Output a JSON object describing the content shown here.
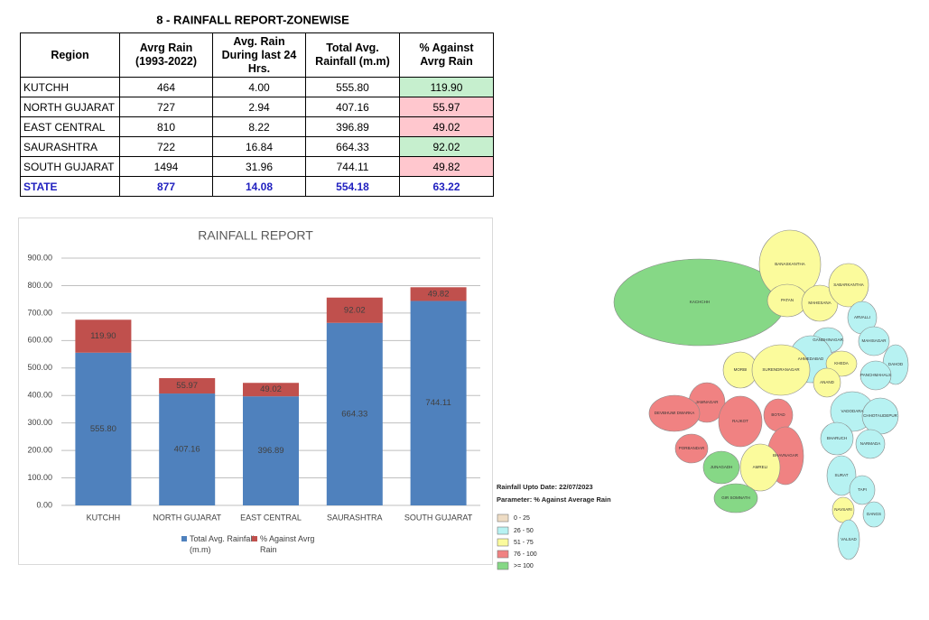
{
  "table": {
    "title": "8 - RAINFALL REPORT-ZONEWISE",
    "header": [
      "Region",
      "Avrg Rain\n(1993-2022)",
      "Avg. Rain\nDuring last 24\nHrs.",
      "Total Avg.\nRainfall (m.m)",
      "% Against\nAvrg Rain"
    ],
    "rows": [
      [
        "KUTCHH",
        "464",
        "4.00",
        "555.80",
        "119.90"
      ],
      [
        "NORTH GUJARAT",
        "727",
        "2.94",
        "407.16",
        "55.97"
      ],
      [
        "EAST CENTRAL",
        "810",
        "8.22",
        "396.89",
        "49.02"
      ],
      [
        "SAURASHTRA",
        "722",
        "16.84",
        "664.33",
        "92.02"
      ],
      [
        "SOUTH GUJARAT",
        "1494",
        "31.96",
        "744.11",
        "49.82"
      ],
      [
        "STATE",
        "877",
        "14.08",
        "554.18",
        "63.22"
      ]
    ],
    "pct_colors": [
      "#c6efce",
      "#ffc7ce",
      "#ffc7ce",
      "#c6efce",
      "#ffc7ce",
      "#ffffff"
    ]
  },
  "chart_data": {
    "type": "stacked-bar",
    "title": "RAINFALL REPORT",
    "categories": [
      "KUTCHH",
      "NORTH GUJARAT",
      "EAST CENTRAL",
      "SAURASHTRA",
      "SOUTH GUJARAT"
    ],
    "series": [
      {
        "name": "Total Avg. Rainfall (m.m)",
        "color": "#4f81bd",
        "values": [
          555.8,
          407.16,
          396.89,
          664.33,
          744.11
        ],
        "value_labels": [
          "555.80",
          "407.16",
          "396.89",
          "664.33",
          "744.11"
        ]
      },
      {
        "name": "% Against Avrg Rain",
        "color": "#c0504d",
        "values": [
          119.9,
          55.97,
          49.02,
          92.02,
          49.82
        ],
        "value_labels": [
          "119.90",
          "55.97",
          "49.02",
          "92.02",
          "49.82"
        ]
      }
    ],
    "ylim": [
      0,
      900
    ],
    "yticks": [
      {
        "value": 0,
        "label": "0.00"
      },
      {
        "value": 100,
        "label": "100.00"
      },
      {
        "value": 200,
        "label": "200.00"
      },
      {
        "value": 300,
        "label": "300.00"
      },
      {
        "value": 400,
        "label": "400.00"
      },
      {
        "value": 500,
        "label": "500.00"
      },
      {
        "value": 600,
        "label": "600.00"
      },
      {
        "value": 700,
        "label": "700.00"
      },
      {
        "value": 800,
        "label": "800.00"
      },
      {
        "value": 900,
        "label": "900.00"
      }
    ],
    "grid": true,
    "legend": "bottom"
  },
  "map": {
    "date_label": "Rainfall Upto Date: 22/07/2023",
    "parameter_label": "Parameter: % Against Average Rain",
    "legend": [
      {
        "label": "0 - 25",
        "color": "#eedcc4"
      },
      {
        "label": "26 - 50",
        "color": "#b7f2f2"
      },
      {
        "label": "51 - 75",
        "color": "#fbfb9c"
      },
      {
        "label": "76 - 100",
        "color": "#f08282"
      },
      {
        "label": ">= 100",
        "color": "#86d886"
      }
    ],
    "districts": [
      {
        "label": "KACHCHH",
        "color": "#86d886"
      },
      {
        "label": "BANASKANTHA",
        "color": "#fbfb9c"
      },
      {
        "label": "PATAN",
        "color": "#fbfb9c"
      },
      {
        "label": "MAHESANA",
        "color": "#fbfb9c"
      },
      {
        "label": "SABARKANTHA",
        "color": "#fbfb9c"
      },
      {
        "label": "ARVALLI",
        "color": "#b7f2f2"
      },
      {
        "label": "GANDHINAGAR",
        "color": "#b7f2f2"
      },
      {
        "label": "MAHISAGAR",
        "color": "#b7f2f2"
      },
      {
        "label": "AHMEDABAD",
        "color": "#b7f2f2"
      },
      {
        "label": "KHEDA",
        "color": "#fbfb9c"
      },
      {
        "label": "DAHOD",
        "color": "#b7f2f2"
      },
      {
        "label": "PANCHMAHALS",
        "color": "#b7f2f2"
      },
      {
        "label": "ANAND",
        "color": "#fbfb9c"
      },
      {
        "label": "VADODARA",
        "color": "#b7f2f2"
      },
      {
        "label": "CHHOTAUDEPUR",
        "color": "#b7f2f2"
      },
      {
        "label": "MORBI",
        "color": "#fbfb9c"
      },
      {
        "label": "SURENDRANAGAR",
        "color": "#fbfb9c"
      },
      {
        "label": "JAMNAGAR",
        "color": "#f08282"
      },
      {
        "label": "DEVBHUMI DWARKA",
        "color": "#f08282"
      },
      {
        "label": "RAJKOT",
        "color": "#f08282"
      },
      {
        "label": "BOTAD",
        "color": "#f08282"
      },
      {
        "label": "BHAVNAGAR",
        "color": "#f08282"
      },
      {
        "label": "PORBANDAR",
        "color": "#f08282"
      },
      {
        "label": "JUNAGADH",
        "color": "#86d886"
      },
      {
        "label": "AMRELI",
        "color": "#fbfb9c"
      },
      {
        "label": "GIR SOMNATH",
        "color": "#86d886"
      },
      {
        "label": "BHARUCH",
        "color": "#b7f2f2"
      },
      {
        "label": "NARMADA",
        "color": "#b7f2f2"
      },
      {
        "label": "SURAT",
        "color": "#b7f2f2"
      },
      {
        "label": "TAPI",
        "color": "#b7f2f2"
      },
      {
        "label": "NAVSARI",
        "color": "#fbfb9c"
      },
      {
        "label": "DANGS",
        "color": "#b7f2f2"
      },
      {
        "label": "VALSAD",
        "color": "#b7f2f2"
      }
    ]
  }
}
